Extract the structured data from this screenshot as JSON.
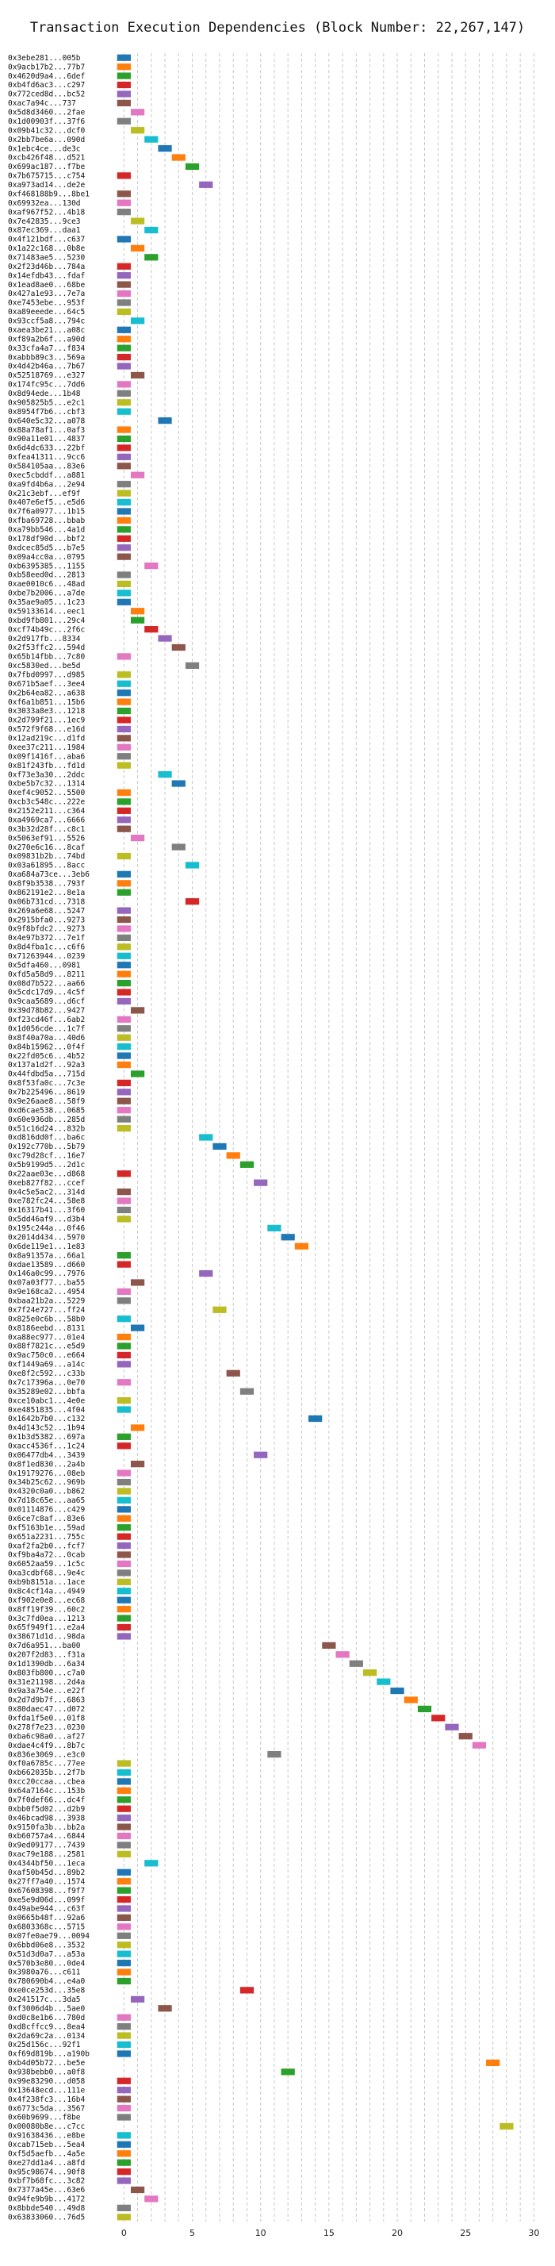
{
  "chart_data": {
    "type": "bar",
    "orientation": "horizontal-gantt",
    "title": "Transaction Execution Dependencies (Block Number: 22,267,147)",
    "xlim": [
      -0.6,
      30.5
    ],
    "xticks": [
      0,
      5,
      10,
      15,
      20,
      25,
      30
    ],
    "grid": "vertical-dashed",
    "colors": [
      "#1f77b4",
      "#ff7f0e",
      "#2ca02c",
      "#d62728",
      "#9467bd",
      "#8c564b",
      "#e377c2",
      "#7f7f7f",
      "#bcbd22",
      "#17becf"
    ],
    "transactions": [
      [
        "0x3ebe281...005b",
        0
      ],
      [
        "0x9acb17b2...77b7",
        0
      ],
      [
        "0x4620d9a4...6def",
        0
      ],
      [
        "0xb4fd6ac3...c297",
        0
      ],
      [
        "0x772ced8d...bc52",
        0
      ],
      [
        "0xac7a94c...737",
        0
      ],
      [
        "0x5d8d3460...2fae",
        1
      ],
      [
        "0x1d00903f...37f6",
        0
      ],
      [
        "0x09b41c32...dcf0",
        1
      ],
      [
        "0x2bb7be6a...090d",
        2
      ],
      [
        "0x1ebc4ce...de3c",
        3
      ],
      [
        "0xcb426f48...d521",
        4
      ],
      [
        "0x699ac187...f7be",
        5
      ],
      [
        "0x7b675715...c754",
        0
      ],
      [
        "0xa973ad14...de2e",
        6
      ],
      [
        "0xf468188b9...8be1",
        0
      ],
      [
        "0x69932ea...130d",
        0
      ],
      [
        "0xaf967f52...4b18",
        0
      ],
      [
        "0x7e42835...9ce3",
        1
      ],
      [
        "0x87ec369...daa1",
        2
      ],
      [
        "0x4f121bdf...c637",
        0
      ],
      [
        "0x1a22c168...0b8e",
        1
      ],
      [
        "0x71483ae5...5230",
        2
      ],
      [
        "0x2f23d46b...784a",
        0
      ],
      [
        "0x14efdb43...fdaf",
        0
      ],
      [
        "0x1ead8ae0...68be",
        0
      ],
      [
        "0x427a1e93...7e7a",
        0
      ],
      [
        "0xe7453ebe...953f",
        0
      ],
      [
        "0xa89eeede...64c5",
        0
      ],
      [
        "0x93ccf5a8...794c",
        1
      ],
      [
        "0xaea3be21...a08c",
        0
      ],
      [
        "0xf89a2b6f...a90d",
        0
      ],
      [
        "0x33cfa4a7...f834",
        0
      ],
      [
        "0xabbb89c3...569a",
        0
      ],
      [
        "0x4d42b46a...7b67",
        0
      ],
      [
        "0x52518769...e327",
        1
      ],
      [
        "0x174fc95c...7dd6",
        0
      ],
      [
        "0x8d94ede...1b48",
        0
      ],
      [
        "0x905825b5...e2c1",
        0
      ],
      [
        "0x8954f7b6...cbf3",
        0
      ],
      [
        "0x640e5c32...a078",
        3
      ],
      [
        "0x88a78af1...0af3",
        0
      ],
      [
        "0x90a11e01...4837",
        0
      ],
      [
        "0x6d4dc633...22bf",
        0
      ],
      [
        "0xfea41311...9cc6",
        0
      ],
      [
        "0x584105aa...83e6",
        0
      ],
      [
        "0xec5cbddf...a881",
        1
      ],
      [
        "0xa9fd4b6a...2e94",
        0
      ],
      [
        "0x21c3ebf...ef9f",
        0
      ],
      [
        "0x407e6ef5...e5d6",
        0
      ],
      [
        "0x7f6a0977...1b15",
        0
      ],
      [
        "0xfba69728...bbab",
        0
      ],
      [
        "0xa79bb546...4a1d",
        0
      ],
      [
        "0x178df90d...bbf2",
        0
      ],
      [
        "0xdcec85d5...b7e5",
        0
      ],
      [
        "0x09a4cc0a...0795",
        0
      ],
      [
        "0xb6395385...1155",
        2
      ],
      [
        "0xb58eed0d...2813",
        0
      ],
      [
        "0xae0010c6...48ad",
        0
      ],
      [
        "0xbe7b2006...a7de",
        0
      ],
      [
        "0x35ae9a05...1c23",
        0
      ],
      [
        "0x59133614...eec1",
        1
      ],
      [
        "0xbd9fb801...29c4",
        1
      ],
      [
        "0xcf74b49c...2f6c",
        2
      ],
      [
        "0x2d917fb...8334",
        3
      ],
      [
        "0x2f53ffc2...594d",
        4
      ],
      [
        "0x65b14fbb...7c80",
        0
      ],
      [
        "0xc5830ed...be5d",
        5
      ],
      [
        "0x7fbd0997...d985",
        0
      ],
      [
        "0x671b5aef...3ee4",
        0
      ],
      [
        "0x2b64ea82...a638",
        0
      ],
      [
        "0xf6a1b851...15b6",
        0
      ],
      [
        "0x3033a8e3...1218",
        0
      ],
      [
        "0x2d799f21...1ec9",
        0
      ],
      [
        "0x572f9f68...e16d",
        0
      ],
      [
        "0x12ad219c...d1fd",
        0
      ],
      [
        "0xee37c211...1984",
        0
      ],
      [
        "0x09f1416f...aba6",
        0
      ],
      [
        "0x81f243fb...fd1d",
        0
      ],
      [
        "0xf73e3a30...2ddc",
        3
      ],
      [
        "0xbe5b7c32...1314",
        4
      ],
      [
        "0xef4c9052...5500",
        0
      ],
      [
        "0xcb3c548c...222e",
        0
      ],
      [
        "0x2152e211...c364",
        0
      ],
      [
        "0xa4969ca7...6666",
        0
      ],
      [
        "0x3b32d28f...c8c1",
        0
      ],
      [
        "0x5063ef91...5526",
        1
      ],
      [
        "0x270e6c16...8caf",
        4
      ],
      [
        "0x09831b2b...74bd",
        0
      ],
      [
        "0x03a61895...8acc",
        5
      ],
      [
        "0xa684a73ce...3eb6",
        0
      ],
      [
        "0x8f9b3538...793f",
        0
      ],
      [
        "0x862191e2...8e1a",
        0
      ],
      [
        "0x06b731cd...7318",
        5
      ],
      [
        "0x269a6e68...5247",
        0
      ],
      [
        "0x2915bfa0...9273",
        0
      ],
      [
        "0x9f8bfdc2...9273",
        0
      ],
      [
        "0x4e97b372...7e1f",
        0
      ],
      [
        "0x8d4fba1c...c6f6",
        0
      ],
      [
        "0x71263944...0239",
        0
      ],
      [
        "0x5dfa460...0981",
        0
      ],
      [
        "0xfd5a58d9...8211",
        0
      ],
      [
        "0x08d7b522...aa66",
        0
      ],
      [
        "0x5cdc17d9...4c5f",
        0
      ],
      [
        "0x9caa5689...d6cf",
        0
      ],
      [
        "0x39d78b82...9427",
        1
      ],
      [
        "0xf23cd46f...6ab2",
        0
      ],
      [
        "0x1d056cde...1c7f",
        0
      ],
      [
        "0x8f40a70a...40d6",
        0
      ],
      [
        "0x84b15962...0f4f",
        0
      ],
      [
        "0x22fd05c6...4b52",
        0
      ],
      [
        "0x137a1d2f...92a3",
        0
      ],
      [
        "0x44fdbd5a...715d",
        1
      ],
      [
        "0x8f53fa0c...7c3e",
        0
      ],
      [
        "0x7b225496...8619",
        0
      ],
      [
        "0x9e26aae8...58f9",
        0
      ],
      [
        "0xd6cae538...0685",
        0
      ],
      [
        "0x60e936db...285d",
        0
      ],
      [
        "0x51c16d24...832b",
        0
      ],
      [
        "0xd816dd0f...ba6c",
        6
      ],
      [
        "0x192c770b...5b79",
        7
      ],
      [
        "0xc79d28cf...16e7",
        8
      ],
      [
        "0x5b9199d5...2d1c",
        9
      ],
      [
        "0x22aae03e...d868",
        0
      ],
      [
        "0xeb827f82...ccef",
        10
      ],
      [
        "0x4c5e5ac2...314d",
        0
      ],
      [
        "0xe782fc24...58e8",
        0
      ],
      [
        "0x16317b41...3f60",
        0
      ],
      [
        "0x5dd46af9...d3b4",
        0
      ],
      [
        "0x195c244a...0f46",
        11
      ],
      [
        "0x2014d434...5970",
        12
      ],
      [
        "0x6de119e1...1e83",
        13
      ],
      [
        "0x8a91357a...66a1",
        0
      ],
      [
        "0xdae13589...d660",
        0
      ],
      [
        "0x146a0c99...7976",
        6
      ],
      [
        "0x07a03f77...ba55",
        1
      ],
      [
        "0x9e168ca2...4954",
        0
      ],
      [
        "0xbaa21b2a...5229",
        0
      ],
      [
        "0x7f24e727...ff24",
        7
      ],
      [
        "0x825e0c6b...58b0",
        0
      ],
      [
        "0x8186eebd...8131",
        1
      ],
      [
        "0xa88ec977...01e4",
        0
      ],
      [
        "0x88f7821c...e5d9",
        0
      ],
      [
        "0x9ac750c0...e664",
        0
      ],
      [
        "0xf1449a69...a14c",
        0
      ],
      [
        "0xe8f2c592...c33b",
        8
      ],
      [
        "0x7c17396a...0e70",
        0
      ],
      [
        "0x35289e02...bbfa",
        9
      ],
      [
        "0xce10abc1...4e0e",
        0
      ],
      [
        "0xe4851835...4f04",
        0
      ],
      [
        "0x1642b7b0...c132",
        14
      ],
      [
        "0x4d143c52...1b94",
        1
      ],
      [
        "0x1b3d5382...697a",
        0
      ],
      [
        "0xacc4536f...1c24",
        0
      ],
      [
        "0x06477db4...3439",
        10
      ],
      [
        "0x8f1ed830...2a4b",
        1
      ],
      [
        "0x19179276...08eb",
        0
      ],
      [
        "0x34b25c62...969b",
        0
      ],
      [
        "0x4320c0a0...b862",
        0
      ],
      [
        "0x7d18c65e...aa65",
        0
      ],
      [
        "0x01114876...c429",
        0
      ],
      [
        "0x6ce7c8af...83e6",
        0
      ],
      [
        "0xf5163b1e...59ad",
        0
      ],
      [
        "0x651a2231...755c",
        0
      ],
      [
        "0xaf2fa2b0...fcf7",
        0
      ],
      [
        "0xf9ba4a72...0cab",
        0
      ],
      [
        "0x6052aa59...1c5c",
        0
      ],
      [
        "0xa3cdbf68...9e4c",
        0
      ],
      [
        "0xb9b8151a...1ace",
        0
      ],
      [
        "0x8c4cf14a...4949",
        0
      ],
      [
        "0xf902e0e8...ec68",
        0
      ],
      [
        "0x8ff19f39...60c2",
        0
      ],
      [
        "0x3c7fd0ea...1213",
        0
      ],
      [
        "0x65f949f1...e2a4",
        0
      ],
      [
        "0x38671d1d...98da",
        0
      ],
      [
        "0x7d6a951...ba00",
        15
      ],
      [
        "0x207f2d83...f31a",
        16
      ],
      [
        "0x1d1390db...6a34",
        17
      ],
      [
        "0x803fb800...c7a0",
        18
      ],
      [
        "0x31e21198...2d4a",
        19
      ],
      [
        "0x9a3a754e...e22f",
        20
      ],
      [
        "0x2d7d9b7f...6863",
        21
      ],
      [
        "0x80daec47...d072",
        22
      ],
      [
        "0xfda1f5e0...01f8",
        23
      ],
      [
        "0x278f7e23...0230",
        24
      ],
      [
        "0xba6c98a0...af27",
        25
      ],
      [
        "0xdae4c4f9...8b7c",
        26
      ],
      [
        "0x836e3069...e3c0",
        11
      ],
      [
        "0xf0a6785c...77ee",
        0
      ],
      [
        "0xb662035b...2f7b",
        0
      ],
      [
        "0xcc20ccaa...cbea",
        0
      ],
      [
        "0x64a7164c...153b",
        0
      ],
      [
        "0x7f0def66...dc4f",
        0
      ],
      [
        "0xbb0f5d02...d2b9",
        0
      ],
      [
        "0x46bcad98...3938",
        0
      ],
      [
        "0x9150fa3b...bb2a",
        0
      ],
      [
        "0xb60757a4...6844",
        0
      ],
      [
        "0x9ed09177...7439",
        0
      ],
      [
        "0xac79e188...2581",
        0
      ],
      [
        "0x4344bf50...1eca",
        2
      ],
      [
        "0xaf50b45d...89b2",
        0
      ],
      [
        "0x27ff7a40...1574",
        0
      ],
      [
        "0x67608398...f9f7",
        0
      ],
      [
        "0xe5e9d06d...099f",
        0
      ],
      [
        "0x49abe944...c63f",
        0
      ],
      [
        "0x0665b48f...92a6",
        0
      ],
      [
        "0x6803368c...5715",
        0
      ],
      [
        "0x07fe0ae79...0094",
        0
      ],
      [
        "0x6bbd06e8...3532",
        0
      ],
      [
        "0x51d3d0a7...a53a",
        0
      ],
      [
        "0x570b3e80...0de4",
        0
      ],
      [
        "0x3980a76...c611",
        0
      ],
      [
        "0x780690b4...e4a0",
        0
      ],
      [
        "0xe0ce253d...35e8",
        9
      ],
      [
        "0x241517c...3da5",
        1
      ],
      [
        "0xf3006d4b...5ae0",
        3
      ],
      [
        "0xd0c8e1b6...780d",
        0
      ],
      [
        "0xd8cffcc9...8ea4",
        0
      ],
      [
        "0x2da69c2a...0134",
        0
      ],
      [
        "0x25d156c...92f1",
        0
      ],
      [
        "0xf69d819b...a190b",
        0
      ],
      [
        "0xb4d05b72...be5e",
        27
      ],
      [
        "0x938bebb0...a0f8",
        12
      ],
      [
        "0x99e83290...d058",
        0
      ],
      [
        "0x13648ecd...111e",
        0
      ],
      [
        "0x4f238fc3...16b4",
        0
      ],
      [
        "0x6773c5da...3567",
        0
      ],
      [
        "0x60b9699...f8be",
        0
      ],
      [
        "0x00080b8e...c7cc",
        28
      ],
      [
        "0x91638436...e8be",
        0
      ],
      [
        "0xcab715eb...5ea4",
        0
      ],
      [
        "0xf5d5aefb...4a5e",
        0
      ],
      [
        "0xe27dd1a4...a8fd",
        0
      ],
      [
        "0x95c98674...90f8",
        0
      ],
      [
        "0xbf7b68fc...3c82",
        0
      ],
      [
        "0x7377a45e...63e6",
        1
      ],
      [
        "0x94fe9b9b...4172",
        2
      ],
      [
        "0x8bbde540...49d8",
        0
      ],
      [
        "0x63833060...76d5",
        0
      ]
    ]
  }
}
